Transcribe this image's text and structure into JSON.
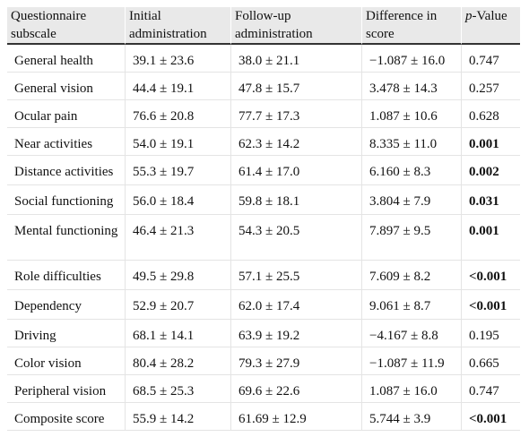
{
  "headers": {
    "col1": "Questionnaire subscale",
    "col2": "Initial administration",
    "col3": "Follow-up administration",
    "col4": "Difference in score",
    "col5_italic": "p",
    "col5_rest": "-Value"
  },
  "rows": [
    {
      "subscale": "General health",
      "initial": "39.1 ± 23.6",
      "followup": "38.0 ± 21.1",
      "difference": "−1.087 ± 16.0",
      "p": "0.747",
      "bold": false
    },
    {
      "subscale": "General vision",
      "initial": "44.4 ± 19.1",
      "followup": "47.8 ± 15.7",
      "difference": "3.478 ± 14.3",
      "p": "0.257",
      "bold": false
    },
    {
      "subscale": "Ocular pain",
      "initial": "76.6 ± 20.8",
      "followup": "77.7 ± 17.3",
      "difference": "1.087 ± 10.6",
      "p": "0.628",
      "bold": false
    },
    {
      "subscale": "Near activities",
      "initial": "54.0 ± 19.1",
      "followup": "62.3 ± 14.2",
      "difference": "8.335 ± 11.0",
      "p": "0.001",
      "bold": true
    },
    {
      "subscale": "Distance activities",
      "initial": "55.3 ± 19.7",
      "followup": "61.4 ± 17.0",
      "difference": "6.160 ± 8.3",
      "p": "0.002",
      "bold": true
    },
    {
      "subscale": "Social functioning",
      "initial": "56.0 ± 18.4",
      "followup": "59.8 ± 18.1",
      "difference": "3.804 ± 7.9",
      "p": "0.031",
      "bold": true
    },
    {
      "subscale": "Mental functioning",
      "initial": "46.4 ± 21.3",
      "followup": "54.3 ± 20.5",
      "difference": "7.897 ± 9.5",
      "p": "0.001",
      "bold": true
    },
    {
      "subscale": "Role difficulties",
      "initial": "49.5 ± 29.8",
      "followup": "57.1 ± 25.5",
      "difference": "7.609 ± 8.2",
      "p": "<0.001",
      "bold": true
    },
    {
      "subscale": "Dependency",
      "initial": "52.9 ± 20.7",
      "followup": "62.0 ± 17.4",
      "difference": "9.061 ± 8.7",
      "p": "<0.001",
      "bold": true
    },
    {
      "subscale": "Driving",
      "initial": "68.1 ± 14.1",
      "followup": "63.9 ± 19.2",
      "difference": "−4.167 ± 8.8",
      "p": "0.195",
      "bold": false
    },
    {
      "subscale": "Color vision",
      "initial": "80.4 ± 28.2",
      "followup": "79.3 ± 27.9",
      "difference": "−1.087 ± 11.9",
      "p": "0.665",
      "bold": false
    },
    {
      "subscale": "Peripheral vision",
      "initial": "68.5 ± 25.3",
      "followup": "69.6 ± 22.6",
      "difference": "1.087 ± 16.0",
      "p": "0.747",
      "bold": false
    },
    {
      "subscale": "Composite score",
      "initial": "55.9 ± 14.2",
      "followup": "61.69 ± 12.9",
      "difference": "5.744 ± 3.9",
      "p": "<0.001",
      "bold": true
    }
  ]
}
